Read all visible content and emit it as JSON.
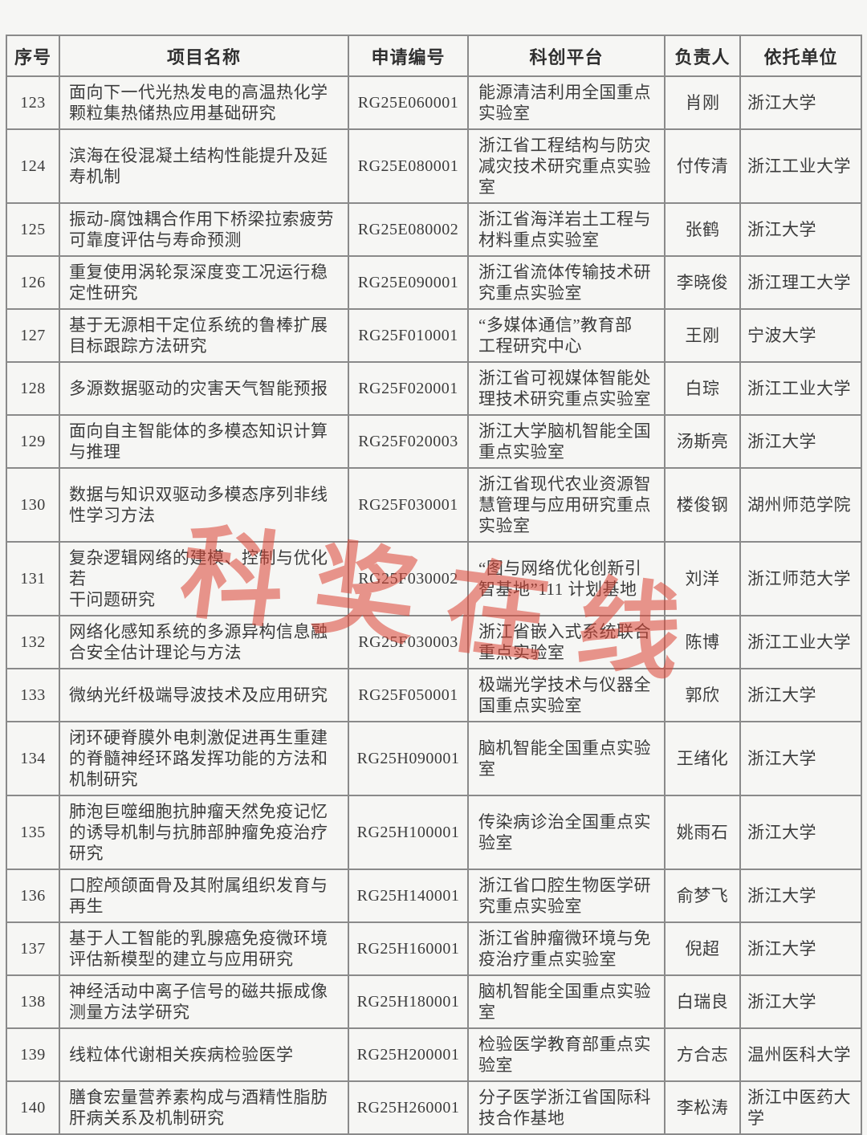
{
  "table": {
    "headers": [
      "序号",
      "项目名称",
      "申请编号",
      "科创平台",
      "负责人",
      "依托单位"
    ],
    "rows": [
      {
        "no": "123",
        "name": "面向下一代光热发电的高温热化学\n颗粒集热储热应用基础研究",
        "code": "RG25E060001",
        "platform": "能源清洁利用全国重点\n实验室",
        "leader": "肖刚",
        "unit": "浙江大学"
      },
      {
        "no": "124",
        "name": "滨海在役混凝土结构性能提升及延\n寿机制",
        "code": "RG25E080001",
        "platform": "浙江省工程结构与防灾\n减灾技术研究重点实验\n室",
        "leader": "付传清",
        "unit": "浙江工业大学"
      },
      {
        "no": "125",
        "name": "振动-腐蚀耦合作用下桥梁拉索疲劳\n可靠度评估与寿命预测",
        "code": "RG25E080002",
        "platform": "浙江省海洋岩土工程与\n材料重点实验室",
        "leader": "张鹤",
        "unit": "浙江大学"
      },
      {
        "no": "126",
        "name": "重复使用涡轮泵深度变工况运行稳\n定性研究",
        "code": "RG25E090001",
        "platform": "浙江省流体传输技术研\n究重点实验室",
        "leader": "李晓俊",
        "unit": "浙江理工大学"
      },
      {
        "no": "127",
        "name": "基于无源相干定位系统的鲁棒扩展\n目标跟踪方法研究",
        "code": "RG25F010001",
        "platform": "“多媒体通信”教育部\n工程研究中心",
        "leader": "王刚",
        "unit": "宁波大学"
      },
      {
        "no": "128",
        "name": "多源数据驱动的灾害天气智能预报",
        "code": "RG25F020001",
        "platform": "浙江省可视媒体智能处\n理技术研究重点实验室",
        "leader": "白琮",
        "unit": "浙江工业大学"
      },
      {
        "no": "129",
        "name": "面向自主智能体的多模态知识计算\n与推理",
        "code": "RG25F020003",
        "platform": "浙江大学脑机智能全国\n重点实验室",
        "leader": "汤斯亮",
        "unit": "浙江大学"
      },
      {
        "no": "130",
        "name": "数据与知识双驱动多模态序列非线\n性学习方法",
        "code": "RG25F030001",
        "platform": "浙江省现代农业资源智\n慧管理与应用研究重点\n实验室",
        "leader": "楼俊钢",
        "unit": "湖州师范学院"
      },
      {
        "no": "131",
        "name": "复杂逻辑网络的建模、控制与优化若\n干问题研究",
        "code": "RG25F030002",
        "platform": "“图与网络优化创新引\n智基地”111 计划基地",
        "leader": "刘洋",
        "unit": "浙江师范大学"
      },
      {
        "no": "132",
        "name": "网络化感知系统的多源异构信息融\n合安全估计理论与方法",
        "code": "RG25F030003",
        "platform": "浙江省嵌入式系统联合\n重点实验室",
        "leader": "陈博",
        "unit": "浙江工业大学"
      },
      {
        "no": "133",
        "name": "微纳光纤极端导波技术及应用研究",
        "code": "RG25F050001",
        "platform": "极端光学技术与仪器全\n国重点实验室",
        "leader": "郭欣",
        "unit": "浙江大学"
      },
      {
        "no": "134",
        "name": "闭环硬脊膜外电刺激促进再生重建\n的脊髓神经环路发挥功能的方法和\n机制研究",
        "code": "RG25H090001",
        "platform": "脑机智能全国重点实验\n室",
        "leader": "王绪化",
        "unit": "浙江大学"
      },
      {
        "no": "135",
        "name": "肺泡巨噬细胞抗肿瘤天然免疫记忆\n的诱导机制与抗肺部肿瘤免疫治疗\n研究",
        "code": "RG25H100001",
        "platform": "传染病诊治全国重点实\n验室",
        "leader": "姚雨石",
        "unit": "浙江大学"
      },
      {
        "no": "136",
        "name": "口腔颅颌面骨及其附属组织发育与\n再生",
        "code": "RG25H140001",
        "platform": "浙江省口腔生物医学研\n究重点实验室",
        "leader": "俞梦飞",
        "unit": "浙江大学"
      },
      {
        "no": "137",
        "name": "基于人工智能的乳腺癌免疫微环境\n评估新模型的建立与应用研究",
        "code": "RG25H160001",
        "platform": "浙江省肿瘤微环境与免\n疫治疗重点实验室",
        "leader": "倪超",
        "unit": "浙江大学"
      },
      {
        "no": "138",
        "name": "神经活动中离子信号的磁共振成像\n测量方法学研究",
        "code": "RG25H180001",
        "platform": "脑机智能全国重点实验\n室",
        "leader": "白瑞良",
        "unit": "浙江大学"
      },
      {
        "no": "139",
        "name": "线粒体代谢相关疾病检验医学",
        "code": "RG25H200001",
        "platform": "检验医学教育部重点实\n验室",
        "leader": "方合志",
        "unit": "温州医科大学"
      },
      {
        "no": "140",
        "name": "膳食宏量营养素构成与酒精性脂肪\n肝病关系及机制研究",
        "code": "RG25H260001",
        "platform": "分子医学浙江省国际科\n技合作基地",
        "leader": "李松涛",
        "unit": "浙江中医药大\n学"
      }
    ]
  },
  "watermark": {
    "text": "科奖在线",
    "color": "#dc4434"
  },
  "colors": {
    "page_background": "#f6f6f4",
    "table_border": "#8a8a8a",
    "text": "#3c3c3c"
  }
}
